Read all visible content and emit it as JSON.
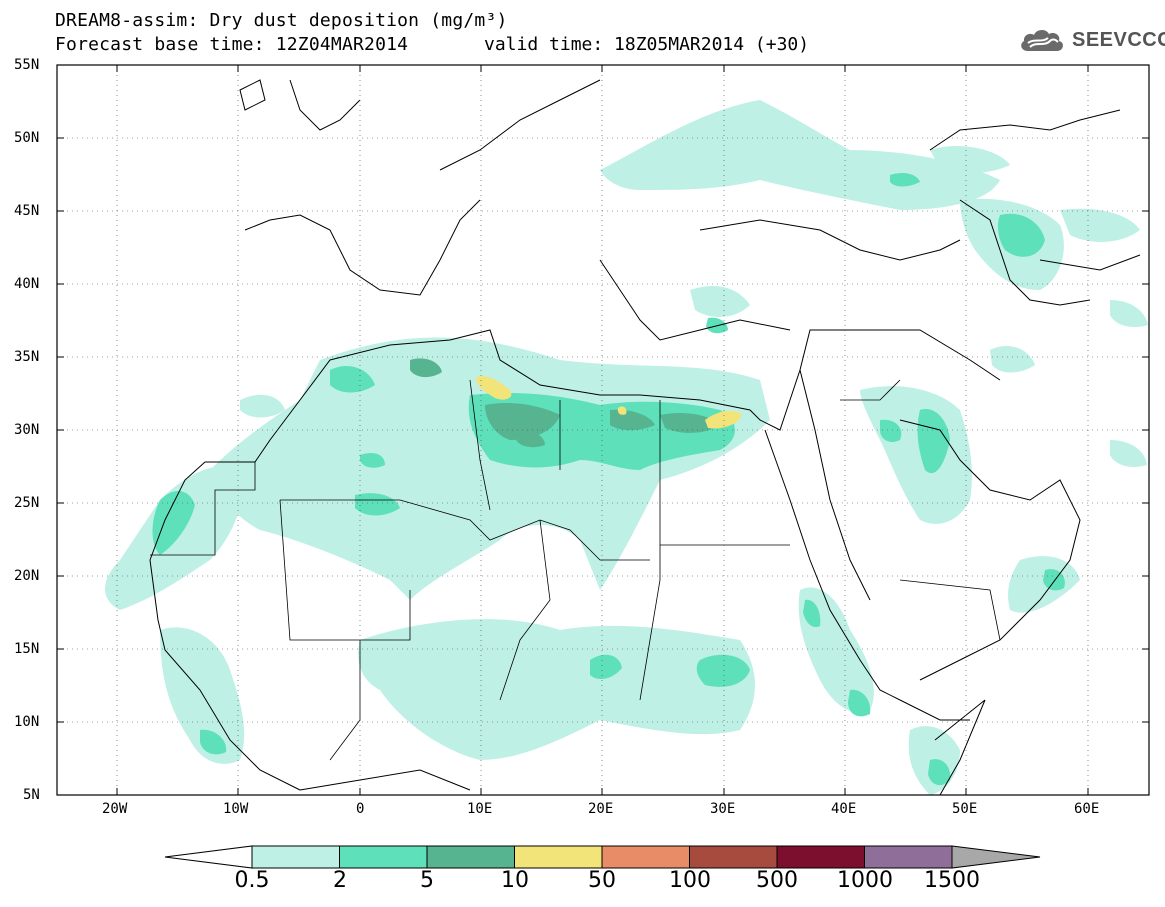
{
  "header": {
    "title": "DREAM8-assim: Dry dust deposition (mg/m³)",
    "base_time": "Forecast base time: 12Z04MAR2014",
    "valid_time": "valid time: 18Z05MAR2014 (+30)",
    "logo_text": "SEEVCCC"
  },
  "map": {
    "lat_labels": [
      "55N",
      "50N",
      "45N",
      "40N",
      "35N",
      "30N",
      "25N",
      "20N",
      "15N",
      "10N",
      "5N"
    ],
    "lon_labels": [
      "20W",
      "10W",
      "0",
      "10E",
      "20E",
      "30E",
      "40E",
      "50E",
      "60E"
    ]
  },
  "legend": {
    "labels": [
      "0.5",
      "2",
      "5",
      "10",
      "50",
      "100",
      "500",
      "1000",
      "1500"
    ],
    "colors": [
      "#bff0e6",
      "#5ee1bb",
      "#57b490",
      "#f3e47a",
      "#e88c68",
      "#a84b3f",
      "#7c0f2d",
      "#8f6e9a"
    ],
    "under_color": "#ffffff",
    "over_color": "#a8a8a8"
  },
  "chart_data": {
    "type": "heatmap",
    "title": "DREAM8-assim: Dry dust deposition (mg/m³)",
    "units": "mg/m³",
    "lon_range": [
      -25,
      65
    ],
    "lat_range": [
      5,
      55
    ],
    "contour_levels": [
      0.5,
      2,
      5,
      10,
      50,
      100,
      500,
      1000,
      1500
    ]
  }
}
